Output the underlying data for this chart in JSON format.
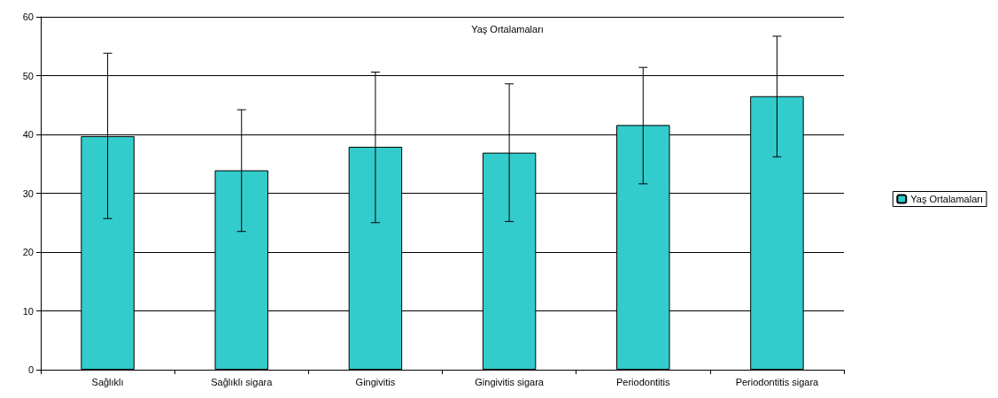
{
  "chart_data": {
    "type": "bar",
    "title": "Yaş Ortalamaları",
    "categories": [
      "Sağlıklı",
      "Sağlıklı sigara",
      "Gingivitis",
      "Gingivitis sigara",
      "Periodontitis",
      "Periodontitis sigara"
    ],
    "series": [
      {
        "name": "Yaş Ortalamaları",
        "color": "#33cccc",
        "values": [
          39.7,
          33.9,
          37.9,
          36.9,
          41.6,
          46.5
        ],
        "errors": [
          [
            25.7,
            53.8
          ],
          [
            23.5,
            44.2
          ],
          [
            25.0,
            50.6
          ],
          [
            25.2,
            48.6
          ],
          [
            31.6,
            51.4
          ],
          [
            36.2,
            56.7
          ]
        ]
      }
    ],
    "ylim": [
      0,
      60
    ],
    "yticks": [
      0,
      10,
      20,
      30,
      40,
      50,
      60
    ],
    "grid": "y",
    "legend": "right"
  }
}
